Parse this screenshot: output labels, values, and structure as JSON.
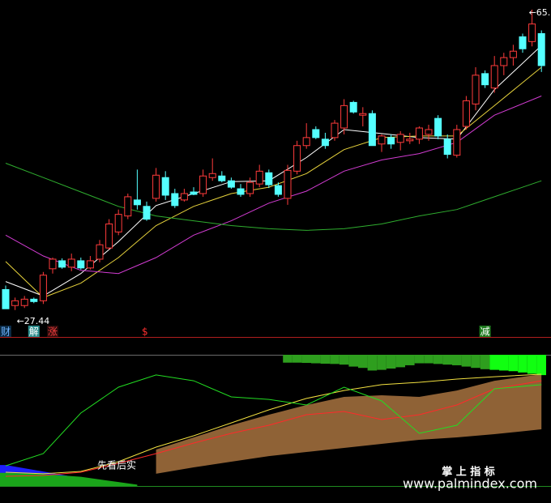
{
  "chart_data": [
    {
      "type": "candlestick",
      "up_color": "#ff3b3b",
      "down_color": "#54ffff",
      "ylim": [
        26,
        66.2
      ],
      "open": [
        30.0,
        28.0,
        28.0,
        28.8,
        28.6,
        32.6,
        33.6,
        32.8,
        33.6,
        32.7,
        33.8,
        35.2,
        37.2,
        39.2,
        41.2,
        40.4,
        41.4,
        44.0,
        42.0,
        41.2,
        42.2,
        42.0,
        44.0,
        44.2,
        43.6,
        42.6,
        42.0,
        43.2,
        44.6,
        43.0,
        41.4,
        44.8,
        48.0,
        50.0,
        48.8,
        49.0,
        50.2,
        53.4,
        51.8,
        52.0,
        48.2,
        49.0,
        48.4,
        48.6,
        48.8,
        49.4,
        51.4,
        48.8,
        46.8,
        50.4,
        53.2,
        57.0,
        55.2,
        58.0,
        59.0,
        61.6,
        61.0,
        62.0
      ],
      "high": [
        30.5,
        29.0,
        29.2,
        29.0,
        32.2,
        34.0,
        33.9,
        34.5,
        34.0,
        34.2,
        36.2,
        38.8,
        40.0,
        42.0,
        45.0,
        41.0,
        45.2,
        44.8,
        42.6,
        42.6,
        42.8,
        45.0,
        46.4,
        44.8,
        44.0,
        43.2,
        44.0,
        45.6,
        45.0,
        43.4,
        45.6,
        48.6,
        50.8,
        50.4,
        49.6,
        51.2,
        53.8,
        53.6,
        52.8,
        52.4,
        49.4,
        49.4,
        49.8,
        49.6,
        50.4,
        50.6,
        51.8,
        49.4,
        50.6,
        54.2,
        57.8,
        57.4,
        59.2,
        59.6,
        60.6,
        62.0,
        65.0,
        62.4
      ],
      "low": [
        27.6,
        27.44,
        27.7,
        28.3,
        28.2,
        32.0,
        32.6,
        32.3,
        32.5,
        32.5,
        33.4,
        35.0,
        36.8,
        38.8,
        40.0,
        38.6,
        41.0,
        41.2,
        40.2,
        41.0,
        41.8,
        41.6,
        43.6,
        43.4,
        42.6,
        41.6,
        41.6,
        42.8,
        42.7,
        41.6,
        40.6,
        44.4,
        47.6,
        48.8,
        47.6,
        48.6,
        49.4,
        52.0,
        50.4,
        48.0,
        47.2,
        47.6,
        47.4,
        48.2,
        48.2,
        48.6,
        48.8,
        46.4,
        46.5,
        50.0,
        52.4,
        55.2,
        54.6,
        56.8,
        58.0,
        59.6,
        60.4,
        57.2
      ],
      "close": [
        27.6,
        28.6,
        28.8,
        28.5,
        31.8,
        33.8,
        32.8,
        33.8,
        32.7,
        33.6,
        35.6,
        38.2,
        39.4,
        41.6,
        40.6,
        38.8,
        44.3,
        41.8,
        40.5,
        42.0,
        41.9,
        44.2,
        44.5,
        43.6,
        42.8,
        41.9,
        43.4,
        44.8,
        43.1,
        41.9,
        44.9,
        48.0,
        49.0,
        49.0,
        48.0,
        50.8,
        53.0,
        52.2,
        52.0,
        48.0,
        49.2,
        48.2,
        49.4,
        48.8,
        50.2,
        50.0,
        49.2,
        46.9,
        50.0,
        53.6,
        56.8,
        55.6,
        58.0,
        59.0,
        59.8,
        60.1,
        63.2,
        58.0
      ],
      "high_label": "←65.",
      "low_label": "←27.44",
      "ma_x": [
        0,
        4,
        8,
        12,
        16,
        20,
        24,
        28,
        32,
        36,
        40,
        44,
        48,
        52,
        57
      ],
      "lines": [
        {
          "color": "#ffffff",
          "values": [
            31.0,
            29.2,
            32.0,
            36.0,
            40.5,
            42.0,
            43.5,
            43.6,
            46.5,
            50.0,
            49.5,
            49.0,
            48.8,
            55.0,
            60.5
          ]
        },
        {
          "color": "#e6d23c",
          "values": [
            33.5,
            29.0,
            30.8,
            34.0,
            38.0,
            40.4,
            42.0,
            42.8,
            44.5,
            47.5,
            49.0,
            49.2,
            49.2,
            53.0,
            57.8
          ]
        },
        {
          "color": "#d23cd2",
          "values": [
            36.8,
            34.2,
            32.4,
            32.0,
            34.0,
            36.8,
            38.6,
            40.8,
            42.3,
            44.8,
            46.2,
            47.0,
            48.4,
            51.8,
            54.2
          ]
        },
        {
          "color": "#2fae2f",
          "values": [
            45.8,
            44.0,
            42.2,
            40.4,
            39.2,
            38.6,
            38.0,
            37.6,
            37.4,
            37.6,
            38.2,
            39.2,
            40.0,
            41.6,
            43.6
          ]
        }
      ],
      "signals": [
        {
          "label": "财",
          "index": 0,
          "color": "#6fb3ff",
          "bg": "#0b2a44"
        },
        {
          "label": "解",
          "index": 3,
          "color": "#ffffff",
          "bg": "#2a8c8c"
        },
        {
          "label": "涨",
          "index": 5,
          "color": "#ff4040",
          "bg": "#2a0a0a"
        },
        {
          "label": "$",
          "index": 15,
          "color": "#ff3030",
          "bg": "#000000"
        },
        {
          "label": "减",
          "index": 51,
          "color": "#ffffff",
          "bg": "#1e7a1e"
        }
      ]
    },
    {
      "type": "indicator",
      "ylim": [
        0,
        100
      ],
      "x": [
        0,
        4,
        8,
        12,
        16,
        20,
        24,
        28,
        32,
        36,
        40,
        44,
        48,
        52,
        57
      ],
      "band_color": "#8f6236",
      "band_upper": [
        null,
        null,
        null,
        null,
        27.8,
        37.0,
        46.3,
        54.3,
        61.7,
        67.9,
        69.1,
        67.9,
        72.8,
        80.2,
        85.2
      ],
      "band_lower": [
        null,
        null,
        null,
        null,
        9.3,
        14.2,
        18.5,
        22.8,
        25.9,
        29.0,
        32.1,
        35.2,
        37.0,
        39.5,
        43.2
      ],
      "lines": [
        {
          "color": "#f2e040",
          "values": [
            10.5,
            9.3,
            11.1,
            18.5,
            29.6,
            38.3,
            48.1,
            58.0,
            66.7,
            72.8,
            77.2,
            79.0,
            81.5,
            83.3,
            85.2
          ]
        },
        {
          "color": "#ff2a2a",
          "values": [
            7.4,
            8.0,
            10.5,
            17.3,
            24.7,
            32.7,
            40.1,
            46.3,
            54.3,
            56.8,
            50.6,
            54.3,
            61.7,
            74.1,
            80.2
          ]
        },
        {
          "color": "#22dd22",
          "values": [
            15.4,
            24.7,
            55.6,
            75.3,
            84.6,
            80.2,
            67.9,
            66.0,
            61.7,
            75.3,
            64.8,
            40.1,
            46.3,
            74.1,
            77.2
          ]
        }
      ],
      "bars": [
        {
          "color": "#2e9e1e",
          "x": [
            30,
            31,
            32,
            33,
            34,
            35,
            36,
            37,
            38,
            39,
            40,
            41,
            42,
            43,
            44,
            45,
            46,
            47,
            48,
            49,
            50,
            51
          ],
          "values": [
            94,
            94,
            93.8,
            93.5,
            93.2,
            93,
            92.5,
            91,
            90,
            88,
            88.5,
            89.5,
            90.5,
            92,
            93.5,
            93.5,
            93,
            92.5,
            92,
            91,
            90,
            89
          ]
        },
        {
          "color": "#11ff11",
          "x": [
            52,
            53,
            54,
            55,
            56,
            57
          ],
          "values": [
            88.5,
            88,
            87.5,
            86.5,
            85.5,
            84.5
          ]
        }
      ],
      "bottom_areas": [
        {
          "color": "#1f1fff",
          "x": [
            0,
            4,
            8,
            11
          ],
          "values": [
            16,
            11,
            6,
            2
          ]
        },
        {
          "color": "#1aa51a",
          "x": [
            0,
            4,
            8,
            12,
            14
          ],
          "values": [
            10,
            9,
            7,
            3,
            1
          ]
        }
      ],
      "note": "先看后实"
    }
  ],
  "watermark": {
    "title": "掌 上 指 标",
    "url": "www.palmindex.com"
  }
}
